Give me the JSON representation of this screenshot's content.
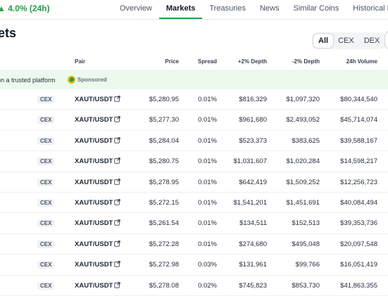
{
  "header": {
    "change_text": "4.0% (24h)",
    "tabs": [
      {
        "label": "Overview",
        "active": false
      },
      {
        "label": "Markets",
        "active": true
      },
      {
        "label": "Treasuries",
        "active": false
      },
      {
        "label": "News",
        "active": false
      },
      {
        "label": "Similar Coins",
        "active": false
      },
      {
        "label": "Historical Data",
        "active": false
      }
    ]
  },
  "page_title": "ets",
  "filters": {
    "all": "All",
    "cex": "CEX",
    "dex": "DEX",
    "active": "All"
  },
  "table": {
    "columns": {
      "pair": "Pair",
      "price": "Price",
      "spread": "Spread",
      "plus_depth": "+2% Depth",
      "minus_depth": "-2% Depth",
      "volume": "24h Volume"
    },
    "sponsor": {
      "text": "on a trusted platform",
      "label": "Sponsored"
    },
    "rows": [
      {
        "type": "CEX",
        "pair": "XAUT/USDT",
        "price": "$5,280.95",
        "spread": "0.01%",
        "plus_depth": "$816,329",
        "minus_depth": "$1,097,320",
        "volume": "$80,344,540"
      },
      {
        "type": "CEX",
        "pair": "XAUT/USDT",
        "price": "$5,277.30",
        "spread": "0.01%",
        "plus_depth": "$961,680",
        "minus_depth": "$2,493,052",
        "volume": "$45,714,074"
      },
      {
        "type": "CEX",
        "pair": "XAUT/USDT",
        "price": "$5,284.04",
        "spread": "0.01%",
        "plus_depth": "$523,373",
        "minus_depth": "$383,625",
        "volume": "$39,588,167"
      },
      {
        "type": "CEX",
        "pair": "XAUT/USDT",
        "price": "$5,280.75",
        "spread": "0.01%",
        "plus_depth": "$1,031,607",
        "minus_depth": "$1,020,284",
        "volume": "$14,598,217"
      },
      {
        "type": "CEX",
        "pair": "XAUT/USDT",
        "price": "$5,278.95",
        "spread": "0.01%",
        "plus_depth": "$642,419",
        "minus_depth": "$1,509,252",
        "volume": "$12,256,723"
      },
      {
        "type": "CEX",
        "pair": "XAUT/USDT",
        "price": "$5,272.15",
        "spread": "0.01%",
        "plus_depth": "$1,541,201",
        "minus_depth": "$1,451,691",
        "volume": "$40,084,494"
      },
      {
        "type": "CEX",
        "pair": "XAUT/USDT",
        "price": "$5,261.54",
        "spread": "0.01%",
        "plus_depth": "$134,511",
        "minus_depth": "$152,513",
        "volume": "$39,353,736"
      },
      {
        "type": "CEX",
        "pair": "XAUT/USDT",
        "price": "$5,272.28",
        "spread": "0.01%",
        "plus_depth": "$274,680",
        "minus_depth": "$495,048",
        "volume": "$20,097,548"
      },
      {
        "type": "CEX",
        "pair": "XAUT/USDT",
        "price": "$5,272.98",
        "spread": "0.03%",
        "plus_depth": "$131,961",
        "minus_depth": "$99,766",
        "volume": "$16,051,419"
      },
      {
        "type": "CEX",
        "pair": "XAUT/USDT",
        "price": "$5,278.08",
        "spread": "0.02%",
        "plus_depth": "$745,823",
        "minus_depth": "$853,730",
        "volume": "$41,863,355"
      }
    ]
  },
  "colors": {
    "accent": "#22a045",
    "sponsor_bg": "#ecfaee"
  },
  "icons": {
    "external_link": "external-link-icon",
    "sponsor_logo": "sponsor-logo-icon"
  }
}
